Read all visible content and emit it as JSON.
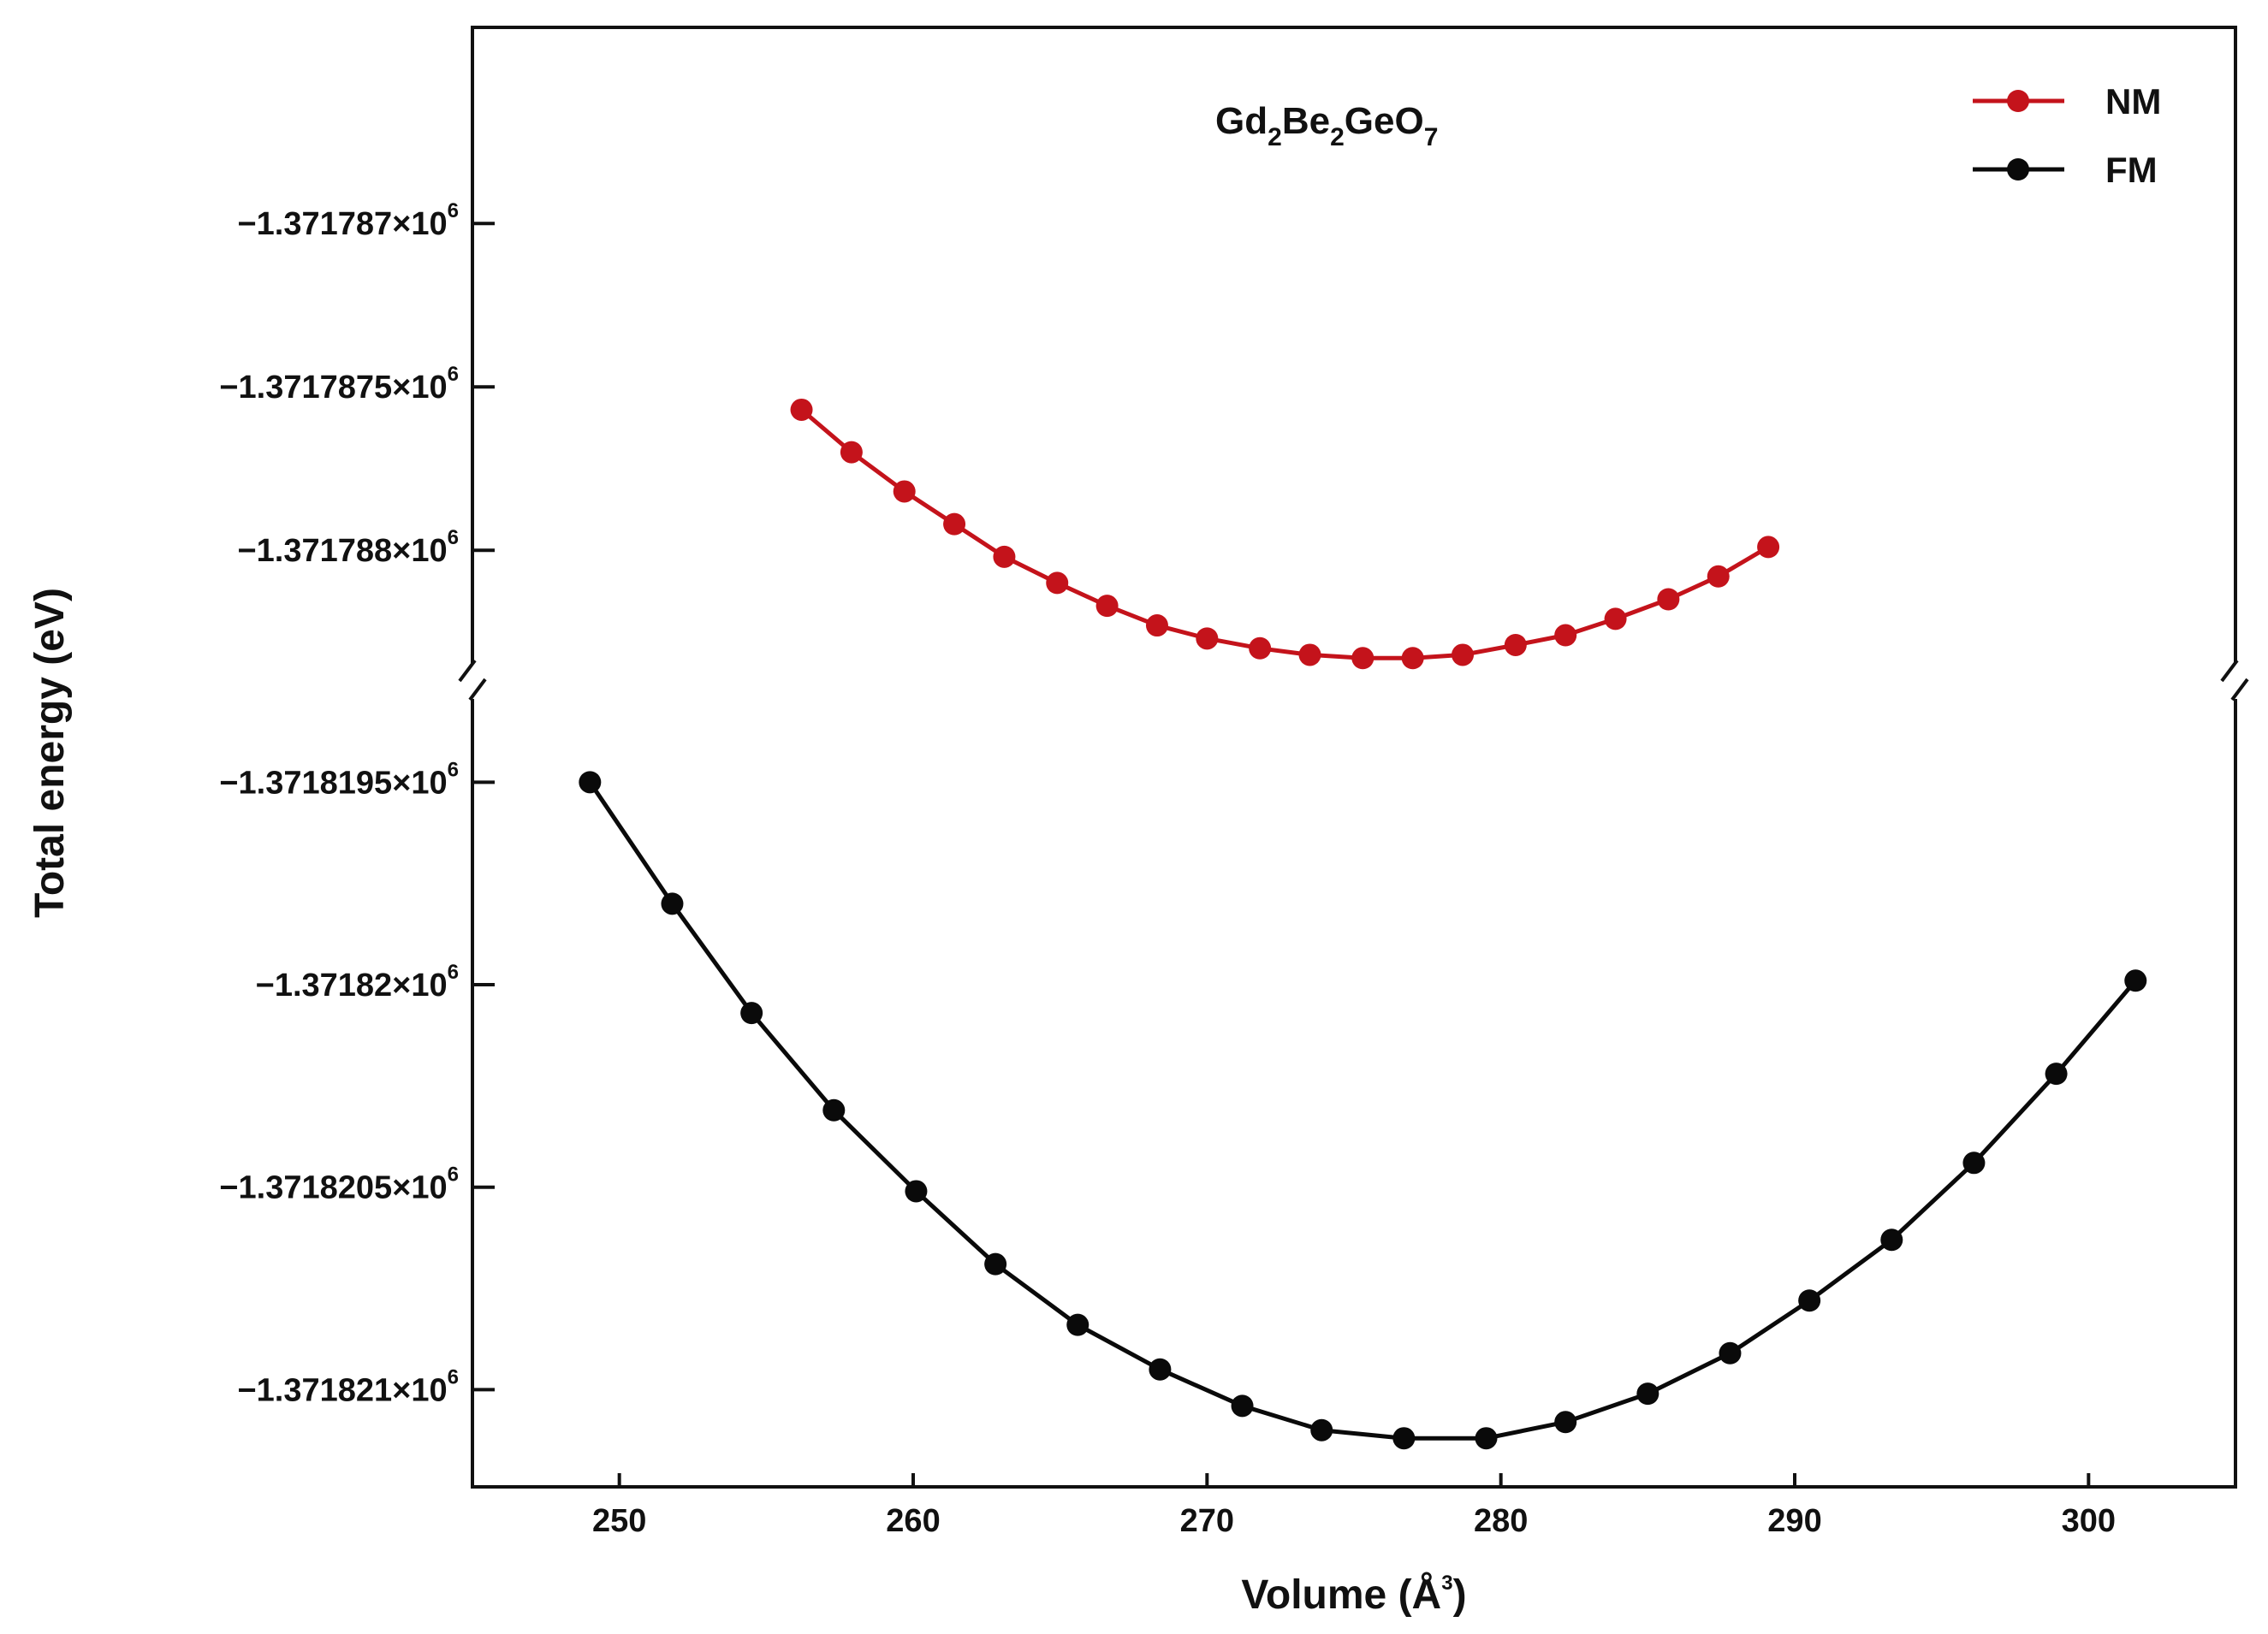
{
  "chart_data": {
    "type": "line",
    "title": "Gd2Be2GeO7",
    "xlabel": "Volume (Å³)",
    "ylabel": "Total energy (eV)",
    "xlim": [
      245,
      305
    ],
    "x_ticks": [
      250,
      260,
      270,
      280,
      290,
      300
    ],
    "broken_y_axis": true,
    "upper_panel": {
      "ylim": [
        -1.3717884,
        -1.3717864
      ],
      "ticks": [
        {
          "value": -1.371787,
          "label": "−1.371787×10",
          "exp": "6"
        },
        {
          "value": -1.3717875,
          "label": "−1.3717875×10",
          "exp": "6"
        },
        {
          "value": -1.371788,
          "label": "−1.371788×10",
          "exp": "6"
        }
      ]
    },
    "lower_panel": {
      "ylim": [
        -1.37182124,
        -1.37181925
      ],
      "ticks": [
        {
          "value": -1.3718195,
          "label": "−1.3718195×10",
          "exp": "6"
        },
        {
          "value": -1.37182,
          "label": "−1.37182×10",
          "exp": "6"
        },
        {
          "value": -1.3718205,
          "label": "−1.3718205×10",
          "exp": "6"
        },
        {
          "value": -1.371821,
          "label": "−1.371821×10",
          "exp": "6"
        }
      ]
    },
    "legend_position": "top-right",
    "series": [
      {
        "name": "NM",
        "color": "#c4131b",
        "panel": "upper",
        "x": [
          256.2,
          257.9,
          259.7,
          261.4,
          263.1,
          264.9,
          266.6,
          268.3,
          270.0,
          271.8,
          273.5,
          275.3,
          277.0,
          278.7,
          280.5,
          282.2,
          283.9,
          285.7,
          287.4,
          289.1
        ],
        "y": [
          -1.37178757,
          -1.3717877,
          -1.37178782,
          -1.37178792,
          -1.37178802,
          -1.3717881,
          -1.37178817,
          -1.37178823,
          -1.37178827,
          -1.3717883,
          -1.37178832,
          -1.37178833,
          -1.37178833,
          -1.37178832,
          -1.37178829,
          -1.37178826,
          -1.37178821,
          -1.37178815,
          -1.37178808,
          -1.37178799
        ]
      },
      {
        "name": "FM",
        "color": "#0a0a0a",
        "panel": "lower",
        "x": [
          249.0,
          251.8,
          254.5,
          257.3,
          260.1,
          262.8,
          265.6,
          268.4,
          271.2,
          273.9,
          276.7,
          279.5,
          282.2,
          285.0,
          287.8,
          290.5,
          293.3,
          296.1,
          298.9,
          301.6
        ],
        "y": [
          -1.3718195,
          -1.3718198,
          -1.37182007,
          -1.37182031,
          -1.37182051,
          -1.37182069,
          -1.37182084,
          -1.37182095,
          -1.37182104,
          -1.3718211,
          -1.37182112,
          -1.37182112,
          -1.37182108,
          -1.37182101,
          -1.37182091,
          -1.37182078,
          -1.37182063,
          -1.37182044,
          -1.37182022,
          -1.37181999
        ]
      }
    ]
  }
}
